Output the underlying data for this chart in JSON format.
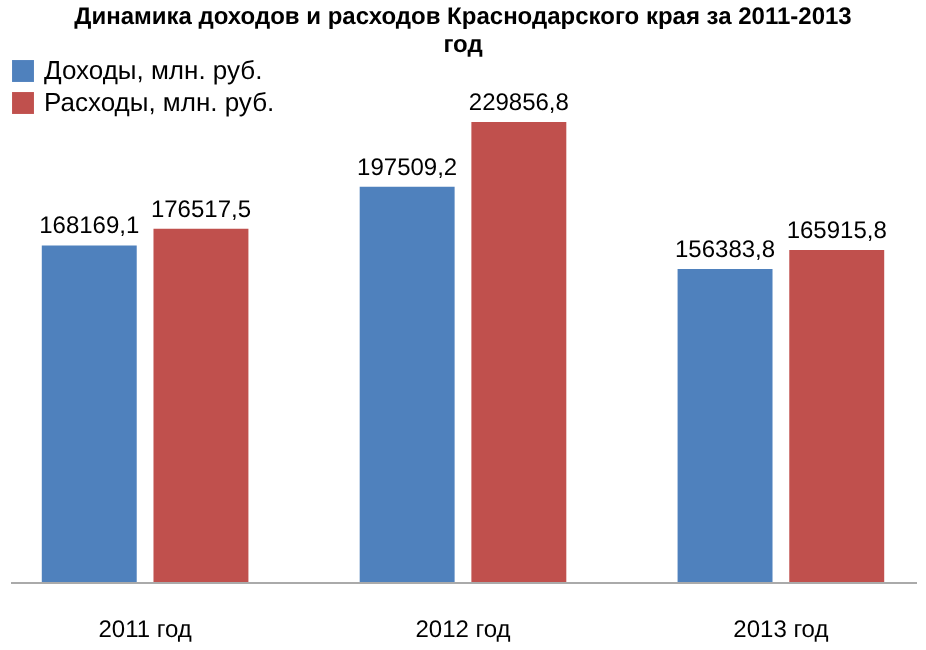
{
  "chart_data": {
    "type": "bar",
    "title": "Динамика доходов и расходов Краснодарского края за 2011-2013 год",
    "categories": [
      "2011 год",
      "2012 год",
      "2013 год"
    ],
    "series": [
      {
        "name": "Доходы, млн. руб.",
        "color": "#4f81bd",
        "values": [
          168169.1,
          197509.2,
          156383.8
        ],
        "value_labels": [
          "168169,1",
          "197509,2",
          "156383,8"
        ]
      },
      {
        "name": "Расходы, млн. руб.",
        "color": "#c0504d",
        "values": [
          176517.5,
          229856.8,
          165915.8
        ],
        "value_labels": [
          "176517,5",
          "229856,8",
          "165915,8"
        ]
      }
    ],
    "legend": "top",
    "grid": false
  }
}
